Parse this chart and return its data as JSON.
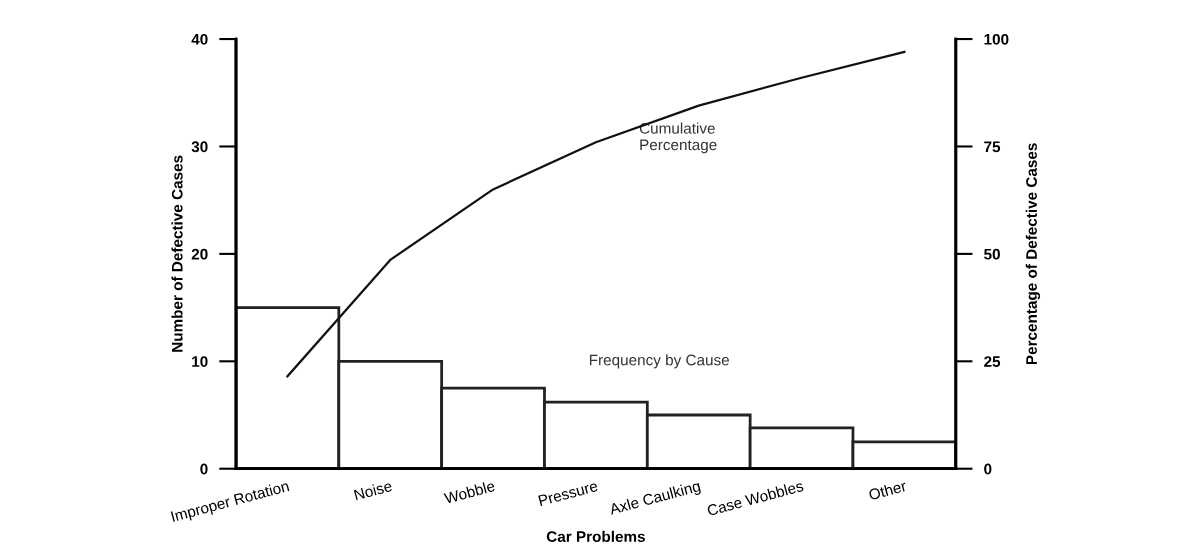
{
  "chart_data": {
    "type": "bar",
    "categories": [
      "Improper Rotation",
      "Noise",
      "Wobble",
      "Pressure",
      "Axle Caulking",
      "Case Wobbles",
      "Other"
    ],
    "xlabel": "Car Problems",
    "ylabel": "Number of Defective Cases",
    "y2label": "Percentage of Defective Cases",
    "series": [
      {
        "color": "#ffffff",
        "values": [
          15,
          10,
          7.5,
          6.2,
          5,
          3.8,
          2.5
        ]
      },
      {
        "type": "line",
        "axis": "y2",
        "color": "#111111",
        "values": [
          21.5,
          48.6,
          65,
          76,
          84.5,
          91,
          97
        ]
      }
    ],
    "ylim": [
      0,
      40
    ],
    "yticks": [
      0,
      10,
      20,
      30,
      40
    ],
    "y2lim": [
      0,
      100
    ],
    "y2ticks": [
      0,
      25,
      50,
      75,
      100
    ],
    "annotations": [
      "Cumulative\nPercentage",
      "Frequency by Cause"
    ],
    "grid": false,
    "legend": false,
    "marker": "none"
  }
}
